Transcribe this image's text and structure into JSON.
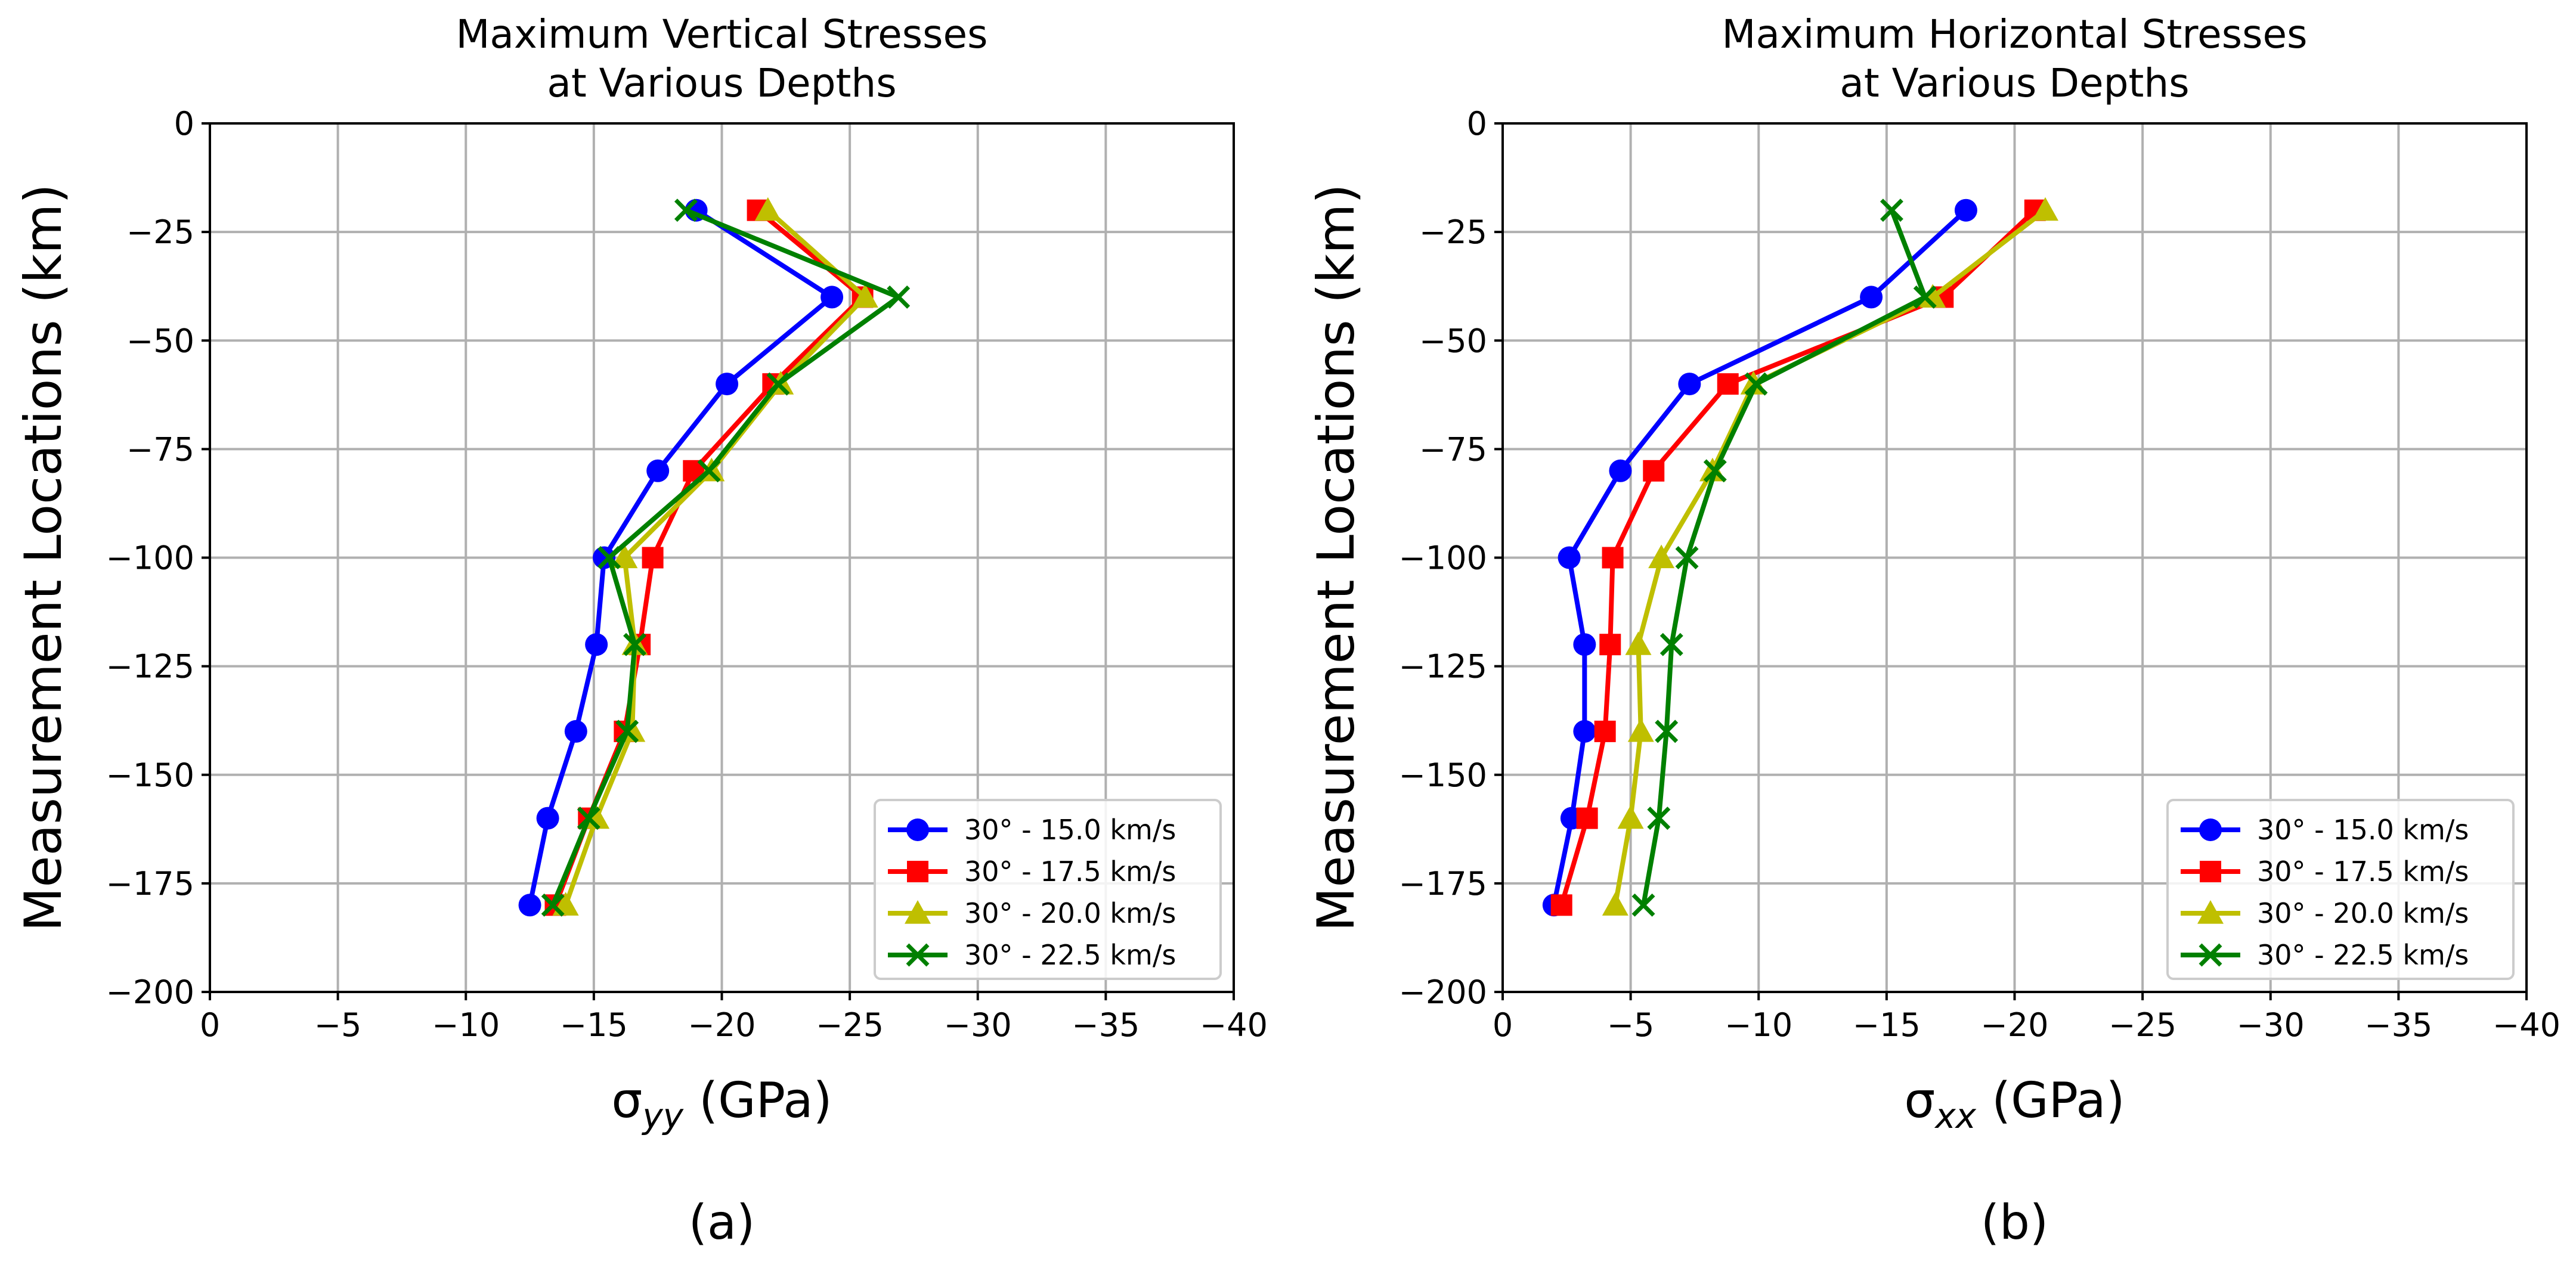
{
  "chart_data": [
    {
      "type": "line",
      "title": [
        "Maximum Vertical Stresses",
        "at Various Depths"
      ],
      "xlabel_base": "σ",
      "xlabel_sub": "yy",
      "xlabel_unit": " (GPa)",
      "ylabel": "Measurement Locations (km)",
      "caption": "(a)",
      "xlim": [
        0,
        -40
      ],
      "ylim": [
        -200,
        0
      ],
      "xticks": [
        0,
        -5,
        -10,
        -15,
        -20,
        -25,
        -30,
        -35,
        -40
      ],
      "xtick_labels": [
        "0",
        "−5",
        "−10",
        "−15",
        "−20",
        "−25",
        "−30",
        "−35",
        "−40"
      ],
      "yticks": [
        0,
        -25,
        -50,
        -75,
        -100,
        -125,
        -150,
        -175,
        -200
      ],
      "ytick_labels": [
        "0",
        "−25",
        "−50",
        "−75",
        "−100",
        "−125",
        "−150",
        "−175",
        "−200"
      ],
      "grid": true,
      "legend_position": "lower-right",
      "y": [
        -20,
        -40,
        -60,
        -80,
        -100,
        -120,
        -140,
        -160,
        -180
      ],
      "series": [
        {
          "name": "30° - 15.0 km/s",
          "color": "#0000ff",
          "marker": "circle",
          "values": [
            -19.0,
            -24.3,
            -20.2,
            -17.5,
            -15.4,
            -15.1,
            -14.3,
            -13.2,
            -12.5
          ]
        },
        {
          "name": "30° - 17.5 km/s",
          "color": "#ff0000",
          "marker": "square",
          "values": [
            -21.4,
            -25.5,
            -22.0,
            -18.9,
            -17.3,
            -16.8,
            -16.2,
            -14.8,
            -13.5
          ]
        },
        {
          "name": "30° - 20.0 km/s",
          "color": "#bfbf00",
          "marker": "triangle",
          "values": [
            -21.8,
            -25.6,
            -22.3,
            -19.6,
            -16.2,
            -16.6,
            -16.5,
            -15.1,
            -13.9
          ]
        },
        {
          "name": "30° - 22.5 km/s",
          "color": "#008000",
          "marker": "x",
          "values": [
            -18.6,
            -26.9,
            -22.2,
            -19.5,
            -15.6,
            -16.6,
            -16.3,
            -14.8,
            -13.4
          ]
        }
      ]
    },
    {
      "type": "line",
      "title": [
        "Maximum Horizontal Stresses",
        "at Various Depths"
      ],
      "xlabel_base": "σ",
      "xlabel_sub": "xx",
      "xlabel_unit": " (GPa)",
      "ylabel": "Measurement Locations (km)",
      "caption": "(b)",
      "xlim": [
        0,
        -40
      ],
      "ylim": [
        -200,
        0
      ],
      "xticks": [
        0,
        -5,
        -10,
        -15,
        -20,
        -25,
        -30,
        -35,
        -40
      ],
      "xtick_labels": [
        "0",
        "−5",
        "−10",
        "−15",
        "−20",
        "−25",
        "−30",
        "−35",
        "−40"
      ],
      "yticks": [
        0,
        -25,
        -50,
        -75,
        -100,
        -125,
        -150,
        -175,
        -200
      ],
      "ytick_labels": [
        "0",
        "−25",
        "−50",
        "−75",
        "−100",
        "−125",
        "−150",
        "−175",
        "−200"
      ],
      "grid": true,
      "legend_position": "lower-right",
      "y": [
        -20,
        -40,
        -60,
        -80,
        -100,
        -120,
        -140,
        -160,
        -180
      ],
      "series": [
        {
          "name": "30° - 15.0 km/s",
          "color": "#0000ff",
          "marker": "circle",
          "values": [
            -18.1,
            -14.4,
            -7.3,
            -4.6,
            -2.6,
            -3.2,
            -3.2,
            -2.7,
            -2.0
          ]
        },
        {
          "name": "30° - 17.5 km/s",
          "color": "#ff0000",
          "marker": "square",
          "values": [
            -20.8,
            -17.2,
            -8.8,
            -5.9,
            -4.3,
            -4.2,
            -4.0,
            -3.3,
            -2.3
          ]
        },
        {
          "name": "30° - 20.0 km/s",
          "color": "#bfbf00",
          "marker": "triangle",
          "values": [
            -21.2,
            -16.8,
            -9.8,
            -8.2,
            -6.2,
            -5.3,
            -5.4,
            -5.0,
            -4.4
          ]
        },
        {
          "name": "30° - 22.5 km/s",
          "color": "#008000",
          "marker": "x",
          "values": [
            -15.2,
            -16.5,
            -9.9,
            -8.3,
            -7.2,
            -6.6,
            -6.4,
            -6.1,
            -5.5
          ]
        }
      ]
    }
  ]
}
